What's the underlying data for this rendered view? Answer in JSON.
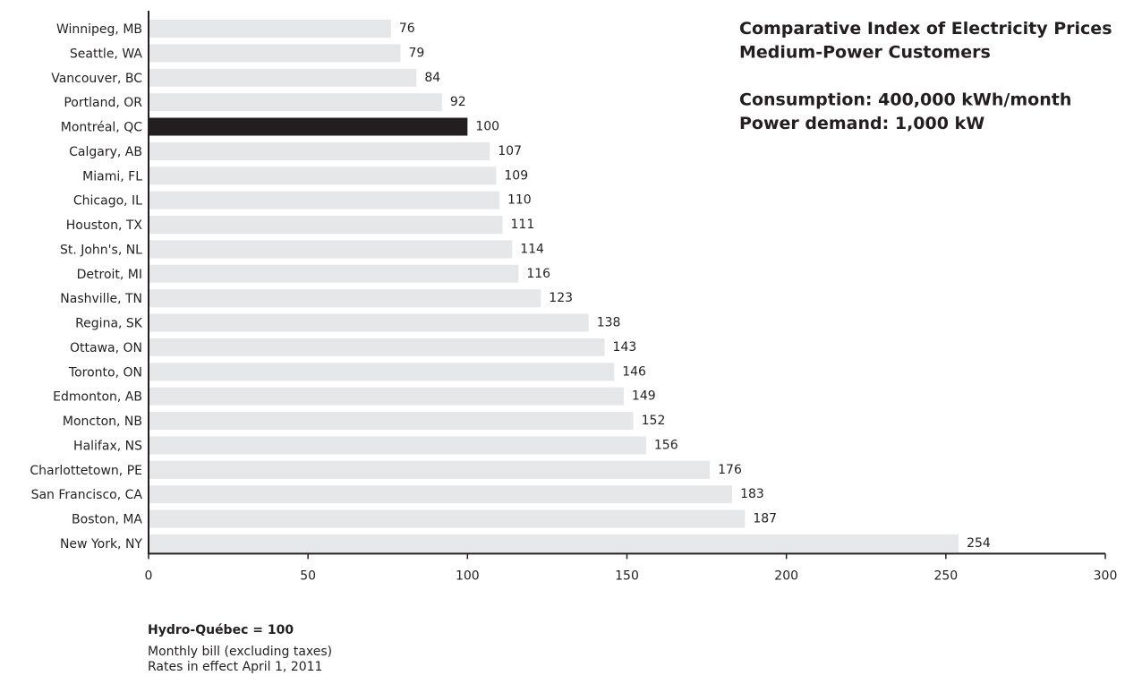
{
  "chart_data": {
    "type": "bar",
    "orientation": "horizontal",
    "title_lines": [
      "Comparative Index of Electricity Prices",
      "Medium-Power Customers",
      "",
      "Consumption: 400,000 kWh/month",
      "Power demand: 1,000 kW"
    ],
    "categories": [
      "Winnipeg, MB",
      "Seattle, WA",
      "Vancouver, BC",
      "Portland, OR",
      "Montréal, QC",
      "Calgary, AB",
      "Miami, FL",
      "Chicago, IL",
      "Houston, TX",
      "St. John's, NL",
      "Detroit, MI",
      "Nashville, TN",
      "Regina, SK",
      "Ottawa, ON",
      "Toronto, ON",
      "Edmonton, AB",
      "Moncton, NB",
      "Halifax, NS",
      "Charlottetown, PE",
      "San Francisco, CA",
      "Boston, MA",
      "New York, NY"
    ],
    "values": [
      76,
      79,
      84,
      92,
      100,
      107,
      109,
      110,
      111,
      114,
      116,
      123,
      138,
      143,
      146,
      149,
      152,
      156,
      176,
      183,
      187,
      254
    ],
    "highlight_category": "Montréal, QC",
    "xlim": [
      0,
      300
    ],
    "xticks": [
      0,
      50,
      100,
      150,
      200,
      250,
      300
    ],
    "grid": false,
    "legend": "none",
    "colors": {
      "bar": "#e6e7e8",
      "highlight": "#231f20",
      "axis": "#231f20",
      "text": "#231f20"
    }
  },
  "notes": {
    "heading": "Hydro-Québec = 100",
    "lines": [
      "Monthly bill (excluding taxes)",
      "Rates in effect April 1, 2011"
    ]
  }
}
